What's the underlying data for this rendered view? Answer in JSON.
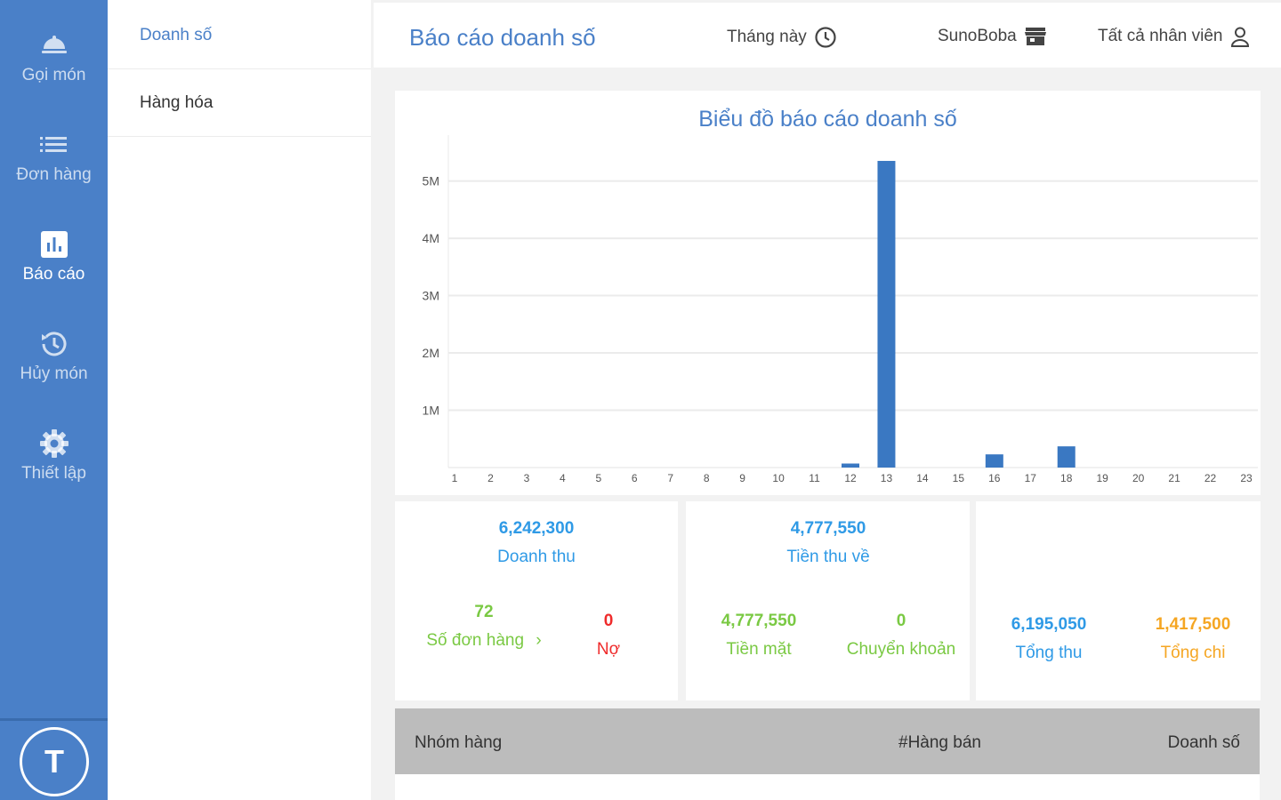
{
  "nav": {
    "items": [
      {
        "label": "Gọi món",
        "icon": "bell-icon"
      },
      {
        "label": "Đơn hàng",
        "icon": "list-icon"
      },
      {
        "label": "Báo cáo",
        "icon": "bar-chart-icon"
      },
      {
        "label": "Hủy món",
        "icon": "history-icon"
      },
      {
        "label": "Thiết lập",
        "icon": "gear-icon"
      }
    ],
    "avatar_letter": "T"
  },
  "submenu": {
    "items": [
      {
        "label": "Doanh số"
      },
      {
        "label": "Hàng hóa"
      }
    ]
  },
  "header": {
    "title": "Báo cáo doanh số",
    "period": "Tháng này",
    "store": "SunoBoba",
    "staff": "Tất cả nhân viên"
  },
  "chart_data": {
    "type": "bar",
    "title": "Biểu đồ báo cáo doanh số",
    "categories": [
      "1",
      "2",
      "3",
      "4",
      "5",
      "6",
      "7",
      "8",
      "9",
      "10",
      "11",
      "12",
      "13",
      "14",
      "15",
      "16",
      "17",
      "18",
      "19",
      "20",
      "21",
      "22",
      "23"
    ],
    "values": [
      0,
      0,
      0,
      0,
      0,
      0,
      0,
      0,
      0,
      0,
      0,
      70000,
      5350000,
      0,
      0,
      230000,
      0,
      370000,
      0,
      0,
      0,
      0,
      0
    ],
    "yticks": [
      "1M",
      "2M",
      "3M",
      "4M",
      "5M"
    ],
    "ytick_values": [
      1000000,
      2000000,
      3000000,
      4000000,
      5000000
    ],
    "ylim": [
      0,
      5800000
    ],
    "xlabel": "",
    "ylabel": "",
    "grid": true,
    "color": "#3a78c2"
  },
  "summary": {
    "revenue": {
      "value": "6,242,300",
      "label": "Doanh thu"
    },
    "orders": {
      "value": "72",
      "label": "Số đơn hàng",
      "arrow": "›"
    },
    "debt": {
      "value": "0",
      "label": "Nợ"
    },
    "received": {
      "value": "4,777,550",
      "label": "Tiền thu về"
    },
    "cash": {
      "value": "4,777,550",
      "label": "Tiền mặt"
    },
    "transfer": {
      "value": "0",
      "label": "Chuyển khoản"
    },
    "total_in": {
      "value": "6,195,050",
      "label": "Tổng thu"
    },
    "total_out": {
      "value": "1,417,500",
      "label": "Tổng chi"
    }
  },
  "table": {
    "headers": [
      "Nhóm hàng",
      "#Hàng bán",
      "Doanh số"
    ]
  },
  "colors": {
    "primary": "#4a80c8",
    "blue": "#2f9ae6",
    "green": "#7ac943",
    "red": "#ef2b2b",
    "orange": "#f5a623"
  }
}
